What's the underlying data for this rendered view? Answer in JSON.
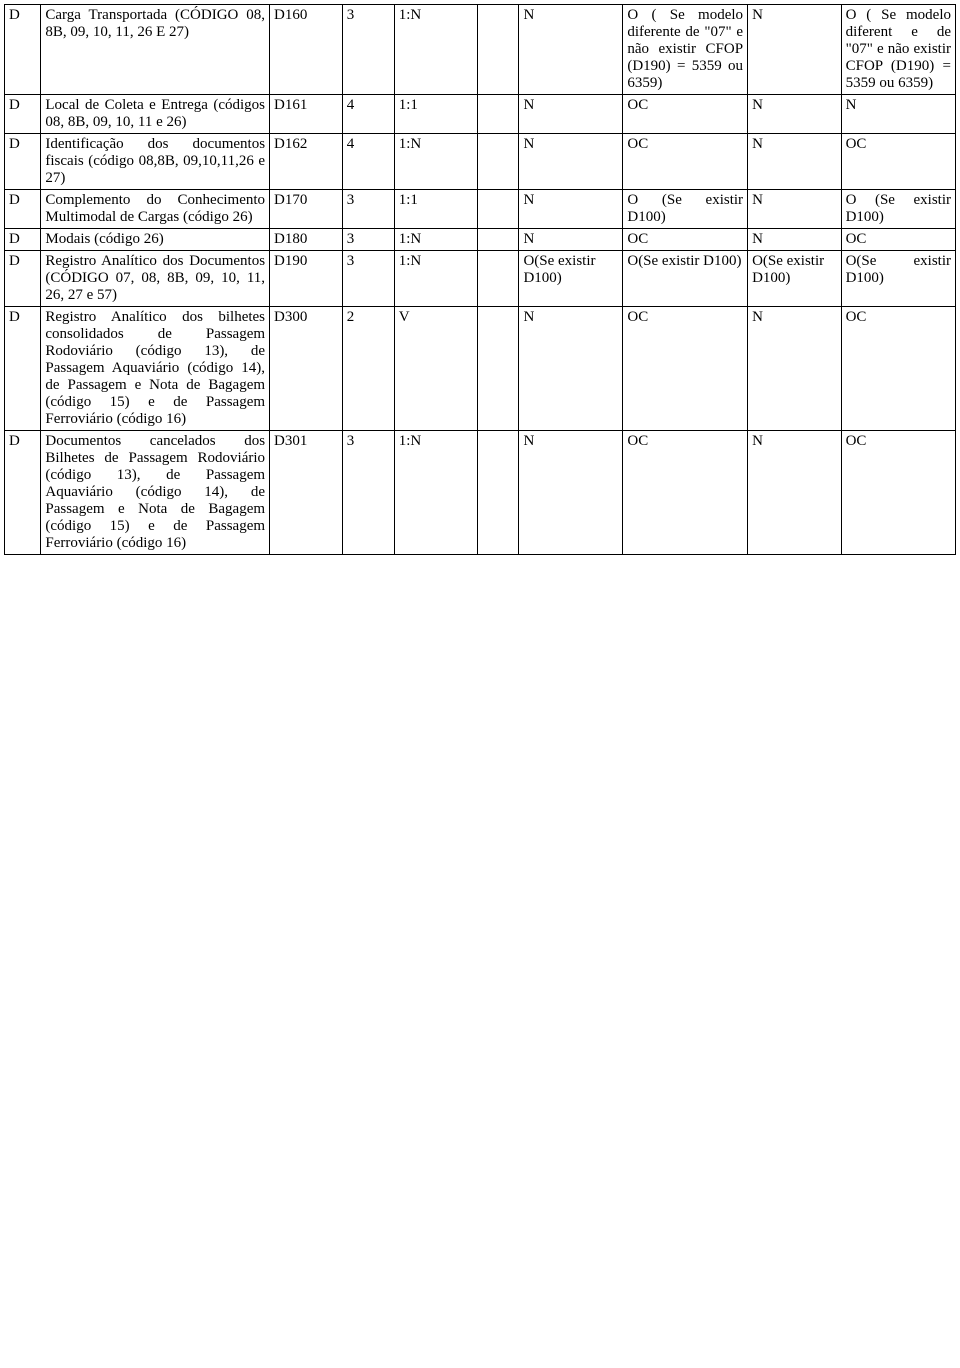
{
  "table": {
    "column_widths_pct": [
      3.5,
      22,
      7,
      5,
      8,
      4,
      10,
      12,
      9,
      11
    ],
    "border_color": "#000000",
    "background_color": "#ffffff",
    "font_family": "Times New Roman",
    "font_size_pt": 12,
    "text_color": "#000000",
    "rows": [
      {
        "c0": "D",
        "c1": "Carga Transportada (CÓDIGO 08, 8B, 09, 10, 11, 26 E 27)",
        "c2": "D160",
        "c3": "3",
        "c4": "1:N",
        "c5": "",
        "c6": "N",
        "c7": "O ( Se modelo diferente de \"07\" e não existir CFOP (D190) = 5359 ou 6359)",
        "c8": "N",
        "c9": "O ( Se modelo diferent e de \"07\" e não existir CFOP (D190) = 5359 ou 6359)"
      },
      {
        "c0": "D",
        "c1": "Local de Coleta e Entrega (códigos 08, 8B, 09, 10, 11 e 26)",
        "c2": "D161",
        "c3": "4",
        "c4": "1:1",
        "c5": "",
        "c6": "N",
        "c7": "OC",
        "c8": "N",
        "c9": "N"
      },
      {
        "c0": "D",
        "c1": "Identificação dos documentos fiscais (código 08,8B, 09,10,11,26 e 27)",
        "c2": "D162",
        "c3": "4",
        "c4": "1:N",
        "c5": "",
        "c6": "N",
        "c7": "OC",
        "c8": "N",
        "c9": "OC"
      },
      {
        "c0": "D",
        "c1": "Complemento do Conhecimento Multimodal de Cargas (código 26)",
        "c2": "D170",
        "c3": "3",
        "c4": "1:1",
        "c5": "",
        "c6": "N",
        "c7": "O (Se existir D100)",
        "c8": "N",
        "c9": "O (Se existir D100)"
      },
      {
        "c0": "D",
        "c1": "Modais (código 26)",
        "c2": "D180",
        "c3": "3",
        "c4": "1:N",
        "c5": "",
        "c6": "N",
        "c7": "OC",
        "c8": "N",
        "c9": "OC"
      },
      {
        "c0": "D",
        "c1": "Registro Analítico dos Documentos (CÓDIGO 07, 08, 8B, 09, 10, 11, 26, 27 e 57)",
        "c2": "D190",
        "c3": "3",
        "c4": "1:N",
        "c5": "",
        "c6": "O(Se existir D100)",
        "c7": "O(Se existir D100)",
        "c8": "O(Se existir D100)",
        "c9": "O(Se existir D100)"
      },
      {
        "c0": "D",
        "c1": "Registro Analítico dos bilhetes consolidados de Passagem Rodoviário (código 13), de Passagem Aquaviário (código 14), de Passagem e Nota de Bagagem (código 15) e de Passagem Ferroviário (código 16)",
        "c2": "D300",
        "c3": "2",
        "c4": "V",
        "c5": "",
        "c6": "N",
        "c7": "OC",
        "c8": "N",
        "c9": "OC"
      },
      {
        "c0": "D",
        "c1": "Documentos cancelados dos Bilhetes de Passagem Rodoviário (código 13), de Passagem Aquaviário (código 14), de Passagem e Nota de Bagagem (código 15) e de Passagem Ferroviário (código 16)",
        "c2": "D301",
        "c3": "3",
        "c4": "1:N",
        "c5": "",
        "c6": "N",
        "c7": "OC",
        "c8": "N",
        "c9": "OC"
      }
    ]
  }
}
